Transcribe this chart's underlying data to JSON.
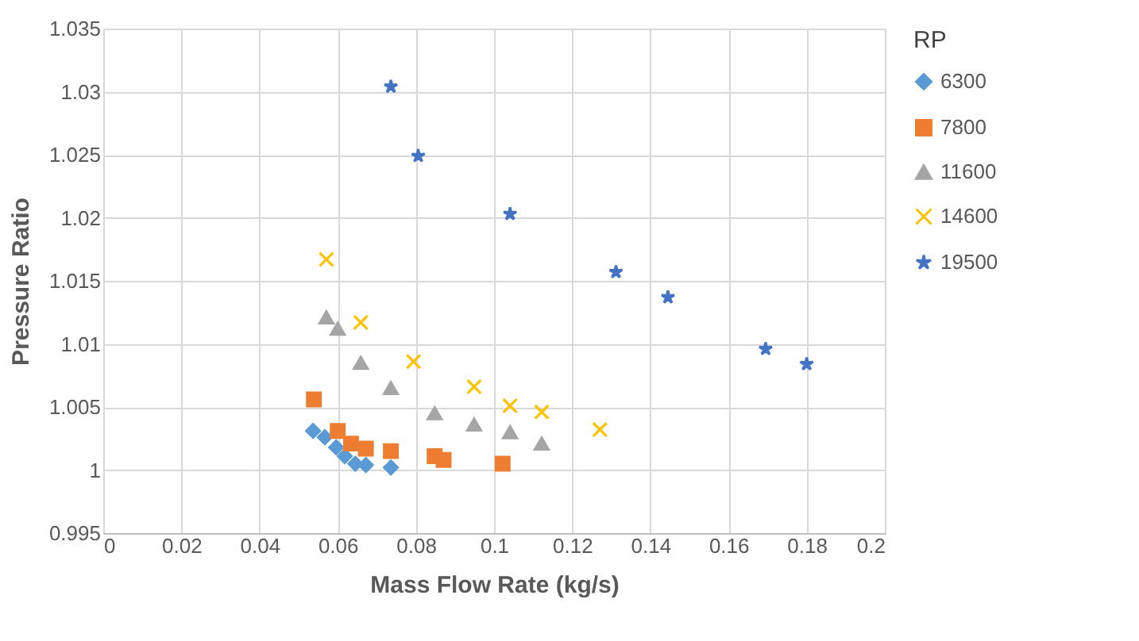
{
  "chart_data": {
    "type": "scatter",
    "xlabel": "Mass Flow Rate (kg/s)",
    "ylabel": "Pressure Ratio",
    "legend_title": "RP",
    "legend": "right",
    "grid": true,
    "xlim": [
      0,
      0.2
    ],
    "xticks": [
      0,
      0.02,
      0.04,
      0.06,
      0.08,
      0.1,
      0.12,
      0.14,
      0.16,
      0.18,
      0.2
    ],
    "ylim": [
      0.995,
      1.035
    ],
    "yticks": [
      0.995,
      1,
      1.005,
      1.01,
      1.015,
      1.02,
      1.025,
      1.03,
      1.035
    ],
    "series": [
      {
        "name": "6300",
        "color": "#5b9bd5",
        "marker": "diamond",
        "x": [
          0.0537,
          0.0567,
          0.0596,
          0.0618,
          0.0645,
          0.0672,
          0.0736
        ],
        "values": [
          1.0031,
          1.0026,
          1.0018,
          1.0011,
          1.0005,
          1.0004,
          1.0002
        ]
      },
      {
        "name": "7800",
        "color": "#ed7d31",
        "marker": "square",
        "x": [
          0.0539,
          0.06,
          0.0634,
          0.0672,
          0.0736,
          0.0848,
          0.0871,
          0.1022
        ],
        "values": [
          1.0056,
          1.0031,
          1.0021,
          1.0017,
          1.0015,
          1.0011,
          1.0008,
          1.0005
        ]
      },
      {
        "name": "11600",
        "color": "#a5a5a5",
        "marker": "triangle",
        "x": [
          0.0571,
          0.06,
          0.0659,
          0.0736,
          0.0848,
          0.0949,
          0.1041,
          0.1122
        ],
        "values": [
          1.0121,
          1.0112,
          1.0085,
          1.0065,
          1.0045,
          1.0036,
          1.003,
          1.0021
        ]
      },
      {
        "name": "14600",
        "color": "#ffc000",
        "marker": "cross",
        "x": [
          0.0571,
          0.0659,
          0.0794,
          0.0949,
          0.1041,
          0.1122,
          0.1271
        ],
        "values": [
          1.0167,
          1.0117,
          1.0086,
          1.0066,
          1.0051,
          1.0046,
          1.0032
        ]
      },
      {
        "name": "19500",
        "color": "#4472c4",
        "marker": "star",
        "x": [
          0.0736,
          0.0806,
          0.1041,
          0.1312,
          0.1445,
          0.1695,
          0.18
        ],
        "values": [
          1.0304,
          1.0249,
          1.0203,
          1.0157,
          1.0137,
          1.0096,
          1.0084
        ]
      }
    ]
  }
}
